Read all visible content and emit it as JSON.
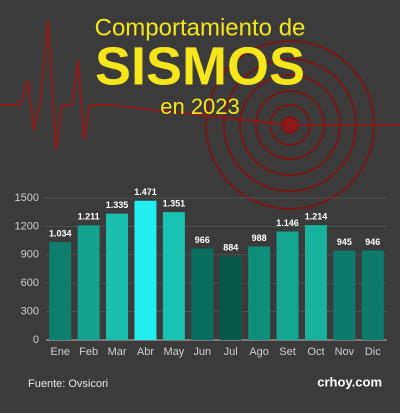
{
  "chart_data": {
    "type": "bar",
    "title": "Comportamiento de",
    "subtitle": "SISMOS",
    "subtitle2": "en 2023",
    "categories": [
      "Ene",
      "Feb",
      "Mar",
      "Abr",
      "May",
      "Jun",
      "Jul",
      "Ago",
      "Set",
      "Oct",
      "Nov",
      "Dic"
    ],
    "values": [
      1034,
      1211,
      1335,
      1471,
      1351,
      966,
      884,
      988,
      1146,
      1214,
      945,
      946
    ],
    "value_labels": [
      "1.034",
      "1.211",
      "1.335",
      "1.471",
      "1.351",
      "966",
      "884",
      "988",
      "1.146",
      "1.214",
      "945",
      "946"
    ],
    "colors": [
      "#0e7f6d",
      "#13a28d",
      "#1bbfae",
      "#22eef0",
      "#19c3b1",
      "#0a6e5e",
      "#075a4a",
      "#0f8f79",
      "#14a690",
      "#17b19d",
      "#0c7b69",
      "#0c7b69"
    ],
    "ylim": [
      0,
      1500
    ],
    "yticks": [
      0,
      300,
      600,
      900,
      1200,
      1500
    ],
    "grid": true,
    "source": "Fuente: Ovsicori",
    "brand": "crhoy.com"
  }
}
